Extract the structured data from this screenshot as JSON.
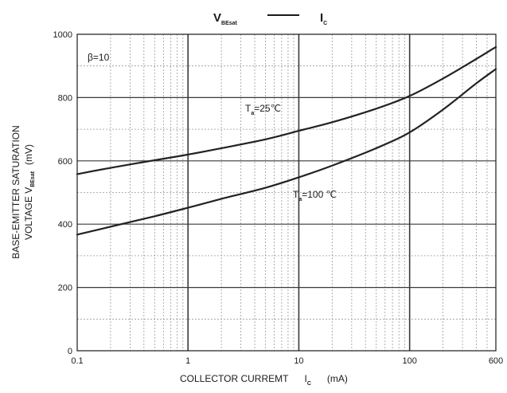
{
  "chart_data": {
    "type": "line",
    "title": {
      "left_main": "V",
      "left_sub": "BEsat",
      "right_main": "I",
      "right_sub": "C"
    },
    "ylabel": {
      "line1": "BASE-EMITTER SATURATION",
      "line2_main": "VOLTAGE   V",
      "line2_sub": "BEsat",
      "line2_unit": "(mV)"
    },
    "xlabel": {
      "main": "COLLECTOR CURREMT",
      "symbol_main": "I",
      "symbol_sub": "C",
      "unit": "(mA)"
    },
    "x_scale": "log",
    "xlim": [
      0.1,
      600
    ],
    "ylim": [
      0,
      1000
    ],
    "x_ticks": [
      {
        "value": 0.1,
        "label": "0.1"
      },
      {
        "value": 1,
        "label": "1"
      },
      {
        "value": 10,
        "label": "10"
      },
      {
        "value": 100,
        "label": "100"
      },
      {
        "value": 600,
        "label": "600"
      }
    ],
    "y_ticks": [
      {
        "value": 0,
        "label": "0"
      },
      {
        "value": 200,
        "label": "200"
      },
      {
        "value": 400,
        "label": "400"
      },
      {
        "value": 600,
        "label": "600"
      },
      {
        "value": 800,
        "label": "800"
      },
      {
        "value": 1000,
        "label": "1000"
      }
    ],
    "grid": true,
    "annotations": {
      "beta": "β=10",
      "ta25_main": "T",
      "ta25_sub": "a",
      "ta25_rest": "=25℃",
      "ta100_main": "T",
      "ta100_sub": "a",
      "ta100_rest": "=100 ℃"
    },
    "series": [
      {
        "x": [
          0.1,
          0.2,
          0.5,
          1,
          2,
          5,
          10,
          20,
          50,
          100,
          200,
          400,
          600
        ],
        "y": [
          558,
          578,
          602,
          620,
          640,
          668,
          695,
          722,
          765,
          805,
          860,
          922,
          960
        ]
      },
      {
        "x": [
          0.1,
          0.2,
          0.5,
          1,
          2,
          5,
          10,
          20,
          50,
          100,
          200,
          400,
          600
        ],
        "y": [
          367,
          392,
          425,
          452,
          480,
          515,
          548,
          585,
          640,
          690,
          762,
          845,
          890
        ]
      }
    ]
  }
}
